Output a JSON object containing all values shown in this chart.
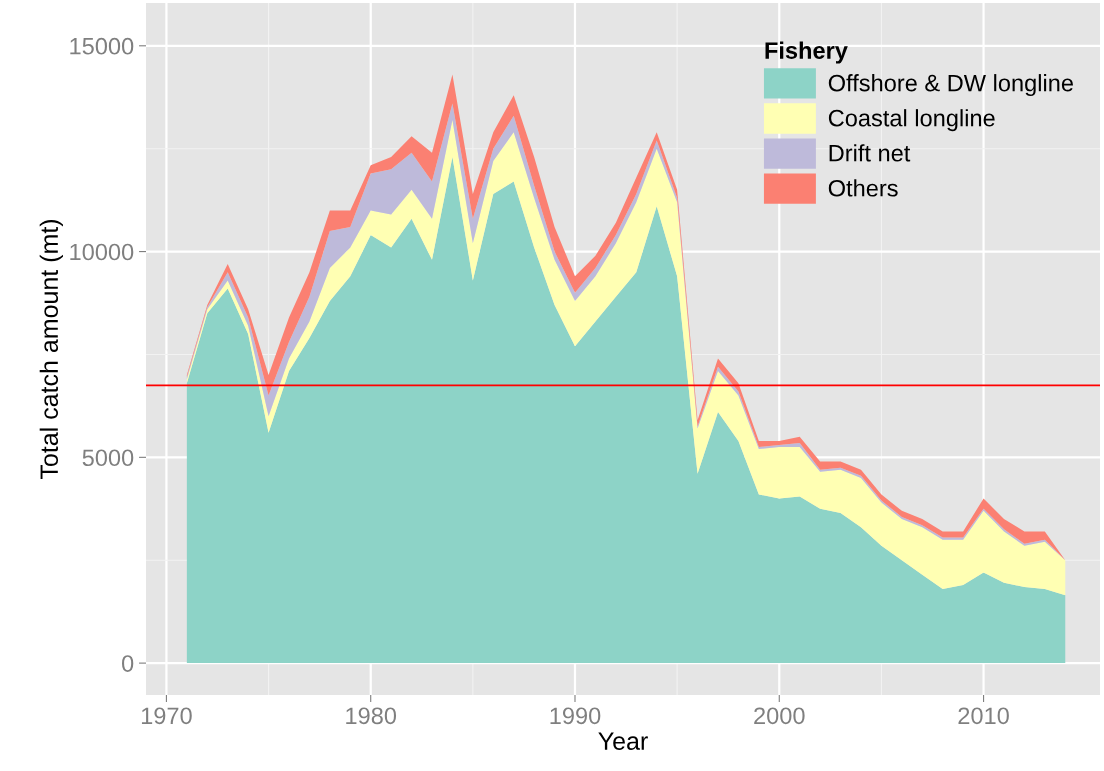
{
  "chart_data": {
    "type": "area",
    "stacked": true,
    "xlabel": "Year",
    "ylabel": "Total catch amount (mt)",
    "legend_title": "Fishery",
    "legend": "top right",
    "grid": true,
    "x": [
      1971,
      1972,
      1973,
      1974,
      1975,
      1976,
      1977,
      1978,
      1979,
      1980,
      1981,
      1982,
      1983,
      1984,
      1985,
      1986,
      1987,
      1988,
      1989,
      1990,
      1991,
      1992,
      1993,
      1994,
      1995,
      1996,
      1997,
      1998,
      1999,
      2000,
      2001,
      2002,
      2003,
      2004,
      2005,
      2006,
      2007,
      2008,
      2009,
      2010,
      2011,
      2012,
      2013,
      2014
    ],
    "xlim": [
      1969,
      2015.7
    ],
    "xticks": [
      1970,
      1980,
      1990,
      2000,
      2010
    ],
    "ylim": [
      -775,
      16040
    ],
    "yticks": [
      0,
      5000,
      10000,
      15000
    ],
    "series": [
      {
        "name": "Offshore & DW longline",
        "color": "#8dd3c7",
        "values": [
          6800,
          8500,
          9100,
          8000,
          5600,
          7100,
          7900,
          8800,
          9400,
          10400,
          10100,
          10800,
          9800,
          12300,
          9300,
          11400,
          11700,
          10100,
          8700,
          7700,
          8300,
          8900,
          9500,
          11100,
          9400,
          4600,
          6100,
          5400,
          4100,
          4000,
          4050,
          3750,
          3650,
          3300,
          2850,
          2500,
          2150,
          1800,
          1900,
          2200,
          1950,
          1850,
          1800,
          1650
        ]
      },
      {
        "name": "Coastal longline",
        "color": "#ffffb3",
        "values": [
          100,
          100,
          200,
          200,
          400,
          300,
          400,
          800,
          700,
          600,
          800,
          700,
          1000,
          900,
          900,
          800,
          1200,
          1200,
          1100,
          1100,
          1100,
          1300,
          1700,
          1400,
          1800,
          1100,
          1000,
          1100,
          1100,
          1250,
          1200,
          900,
          1050,
          1200,
          1050,
          1000,
          1150,
          1200,
          1100,
          1500,
          1250,
          1000,
          1150,
          850
        ]
      },
      {
        "name": "Drift net",
        "color": "#bebada",
        "values": [
          50,
          50,
          200,
          200,
          500,
          400,
          600,
          900,
          500,
          900,
          1100,
          900,
          900,
          400,
          600,
          300,
          400,
          300,
          200,
          200,
          200,
          200,
          200,
          200,
          100,
          50,
          100,
          100,
          50,
          50,
          100,
          50,
          50,
          50,
          50,
          50,
          50,
          50,
          50,
          50,
          50,
          50,
          50,
          0
        ]
      },
      {
        "name": "Others",
        "color": "#fb8072",
        "values": [
          50,
          50,
          200,
          200,
          500,
          600,
          600,
          500,
          400,
          200,
          300,
          400,
          700,
          700,
          600,
          400,
          500,
          700,
          600,
          400,
          300,
          300,
          400,
          200,
          200,
          150,
          200,
          200,
          150,
          100,
          150,
          200,
          150,
          150,
          150,
          150,
          150,
          150,
          150,
          250,
          250,
          300,
          200,
          0
        ]
      }
    ],
    "ref_lines": [
      {
        "axis": "y",
        "value": 6750,
        "color": "#ff0000"
      }
    ]
  }
}
